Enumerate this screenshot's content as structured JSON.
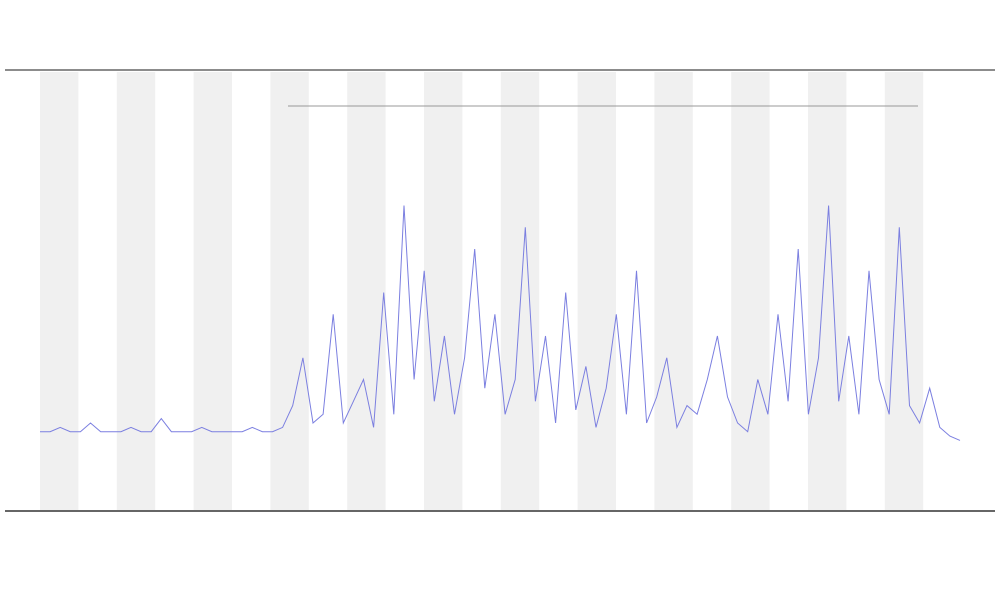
{
  "chart_data": {
    "type": "line",
    "series": [
      {
        "name": null,
        "color": "#7b7fe0",
        "values": [
          18,
          18,
          19,
          18,
          18,
          20,
          18,
          18,
          18,
          19,
          18,
          18,
          21,
          18,
          18,
          18,
          19,
          18,
          18,
          18,
          18,
          19,
          18,
          18,
          19,
          24,
          35,
          20,
          22,
          45,
          20,
          25,
          30,
          19,
          50,
          22,
          70,
          30,
          55,
          25,
          40,
          22,
          35,
          60,
          28,
          45,
          22,
          30,
          65,
          25,
          40,
          20,
          50,
          23,
          33,
          19,
          28,
          45,
          22,
          55,
          20,
          26,
          35,
          19,
          24,
          22,
          30,
          40,
          26,
          20,
          18,
          30,
          22,
          45,
          25,
          60,
          22,
          35,
          70,
          25,
          40,
          22,
          55,
          30,
          22,
          65,
          24,
          20,
          28,
          19,
          17,
          16
        ]
      }
    ],
    "ylim": [
      0,
      100
    ]
  }
}
